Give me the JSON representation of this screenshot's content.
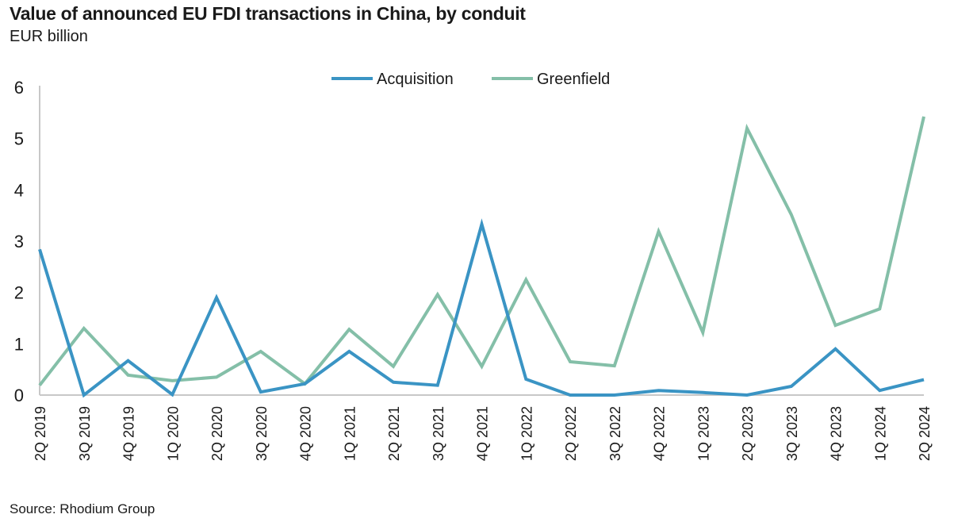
{
  "chart_data": {
    "type": "line",
    "title": "Value of announced EU FDI transactions in China, by conduit",
    "subtitle": "EUR billion",
    "source": "Source: Rhodium Group",
    "xlabel": "",
    "ylabel": "",
    "ylim": [
      0,
      6
    ],
    "yticks": [
      "0",
      "1",
      "2",
      "3",
      "4",
      "5",
      "6"
    ],
    "grid": false,
    "legend_placement": "top-center",
    "categories": [
      "2Q 2019",
      "3Q 2019",
      "4Q 2019",
      "1Q 2020",
      "2Q 2020",
      "3Q 2020",
      "4Q 2020",
      "1Q 2021",
      "2Q 2021",
      "3Q 2021",
      "4Q 2021",
      "1Q 2022",
      "2Q 2022",
      "3Q 2022",
      "4Q 2022",
      "1Q 2023",
      "2Q 2023",
      "3Q 2023",
      "4Q 2023",
      "1Q 2024",
      "2Q 2024"
    ],
    "series": [
      {
        "name": "Acquisition",
        "color": "#3a94c4",
        "values": [
          2.84,
          0.0,
          0.67,
          0.01,
          1.9,
          0.06,
          0.22,
          0.85,
          0.25,
          0.19,
          3.33,
          0.31,
          0.0,
          0.0,
          0.09,
          0.05,
          0.0,
          0.17,
          0.9,
          0.09,
          0.3
        ]
      },
      {
        "name": "Greenfield",
        "color": "#84bfa8",
        "values": [
          0.19,
          1.3,
          0.39,
          0.28,
          0.35,
          0.85,
          0.22,
          1.28,
          0.56,
          1.96,
          0.56,
          2.25,
          0.65,
          0.57,
          3.19,
          1.22,
          5.2,
          3.52,
          1.36,
          1.68,
          5.43
        ]
      }
    ]
  }
}
